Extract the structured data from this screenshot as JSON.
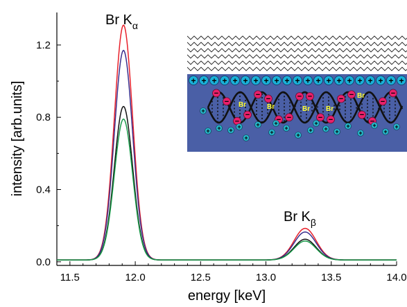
{
  "chart_data": {
    "type": "line",
    "xlabel": "energy [keV]",
    "ylabel": "intensity [arb.units]",
    "xlim": [
      11.4,
      14.0
    ],
    "ylim": [
      -0.02,
      1.38
    ],
    "xticks": [
      11.5,
      12.0,
      12.5,
      13.0,
      13.5,
      14.0
    ],
    "xtick_labels": [
      "11.5",
      "12.0",
      "12.5",
      "13.0",
      "13.5",
      "14.0"
    ],
    "yticks": [
      0.0,
      0.4,
      0.8,
      1.2
    ],
    "ytick_labels": [
      "0.0",
      "0.4",
      "0.8",
      "1.2"
    ],
    "grid": false,
    "annotations": [
      {
        "text": "Br K",
        "subscript": "α",
        "x": 11.91,
        "y": 1.34
      },
      {
        "text": "Br K",
        "subscript": "β",
        "x": 13.32,
        "y": 0.22
      }
    ],
    "series": [
      {
        "color": "#e8202a",
        "ka_peak": 1.3,
        "kb_peak": 0.175
      },
      {
        "color": "#3a2e8c",
        "ka_peak": 1.16,
        "kb_peak": 0.155
      },
      {
        "color": "#111111",
        "ka_peak": 0.85,
        "kb_peak": 0.115
      },
      {
        "color": "#1a9a4a",
        "ka_peak": 0.78,
        "kb_peak": 0.105
      }
    ],
    "peak_centers": {
      "ka": 11.91,
      "kb": 13.3
    },
    "baseline": 0.01
  },
  "inset": {
    "br_labels": [
      "Br",
      "Br",
      "Br",
      "Br",
      "Br"
    ],
    "background_color": "#4a5fa6",
    "surface_charge_color": "#1ab0d8",
    "anion_color": "#e8206a",
    "counterion_color": "#26b5c9"
  }
}
